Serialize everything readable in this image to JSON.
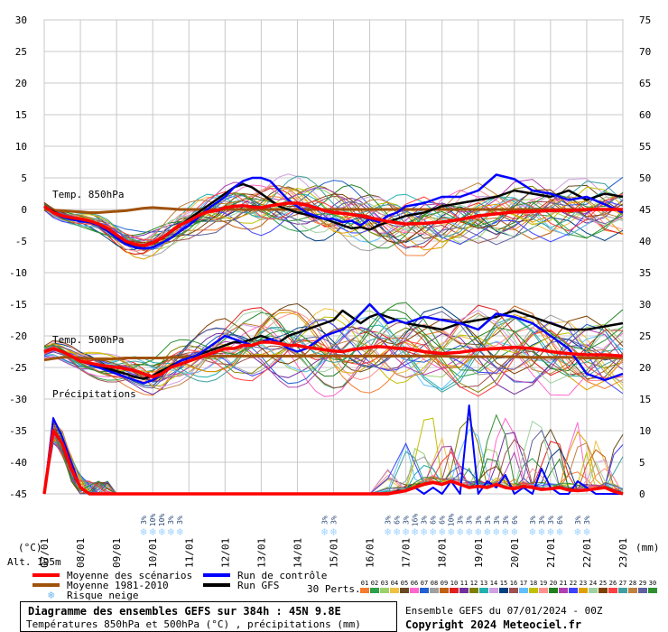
{
  "chart_data": {
    "type": "line",
    "title": "Diagramme des ensembles GEFS sur 384h : 45N 9.8E",
    "subtitle": "Températures 850hPa et 500hPa (°C) , précipitations (mm)",
    "run_info": "Ensemble GEFS du 07/01/2024 - 00Z",
    "copyright": "Copyright 2024 Meteociel.fr",
    "altitude_label": "Alt. 195m",
    "left_axis_unit": "(°C)",
    "right_axis_unit": "(mm)",
    "left_axis": {
      "ylim": [
        -45,
        30
      ],
      "ticks": [
        30,
        25,
        20,
        15,
        10,
        5,
        0,
        -5,
        -10,
        -15,
        -20,
        -25,
        -30,
        -35,
        -40,
        -45
      ]
    },
    "right_axis": {
      "ylim": [
        0,
        75
      ],
      "ticks": [
        75,
        70,
        65,
        60,
        55,
        50,
        45,
        40,
        35,
        30,
        25,
        20,
        15,
        10,
        5,
        0
      ]
    },
    "x_ticks": [
      "07/01",
      "08/01",
      "09/01",
      "10/01",
      "11/01",
      "12/01",
      "13/01",
      "14/01",
      "15/01",
      "16/01",
      "17/01",
      "18/01",
      "19/01",
      "20/01",
      "21/01",
      "22/01",
      "23/01"
    ],
    "grid": true,
    "panel_labels": {
      "t850": "Temp. 850hPa",
      "t500": "Temp. 500hPa",
      "precip": "Précipitations"
    },
    "legend": {
      "moyenne_scenarios": "Moyenne des scénarios",
      "moyenne_clim": "Moyenne 1981-2010",
      "risque_neige": "Risque neige",
      "run_controle": "Run de contrôle",
      "run_gfs": "Run GFS",
      "perts_label": "30 Perts."
    },
    "pert_ids": [
      "01",
      "02",
      "03",
      "04",
      "05",
      "06",
      "07",
      "08",
      "09",
      "10",
      "11",
      "12",
      "13",
      "14",
      "15",
      "16",
      "17",
      "18",
      "19",
      "20",
      "21",
      "22",
      "23",
      "24",
      "25",
      "26",
      "27",
      "28",
      "29",
      "30"
    ],
    "pert_colors": [
      "#f47c30",
      "#2ea04a",
      "#9bd06a",
      "#f0c040",
      "#6a4a20",
      "#ff66cc",
      "#2060d0",
      "#a0a0a0",
      "#c06010",
      "#e02020",
      "#7030a0",
      "#808000",
      "#20b0b0",
      "#d0a0e0",
      "#004080",
      "#a05050",
      "#60c0ff",
      "#c0c000",
      "#ff9090",
      "#208020",
      "#b040b0",
      "#4040ff",
      "#e0a000",
      "#a0d0a0",
      "#804000",
      "#ff4040",
      "#40a0a0",
      "#c08040",
      "#6060a0",
      "#309030"
    ],
    "colors": {
      "moyenne_scenarios": "#ff0000",
      "moyenne_clim": "#a0520a",
      "run_controle": "#0000ff",
      "run_gfs": "#000000",
      "snow": "#9fd3ff"
    },
    "t850": {
      "x_days": [
        0,
        0.25,
        0.5,
        0.75,
        1,
        1.25,
        1.5,
        1.75,
        2,
        2.25,
        2.5,
        2.75,
        3,
        3.25,
        3.5,
        3.75,
        4,
        4.25,
        4.5,
        4.75,
        5,
        5.25,
        5.5,
        5.75,
        6,
        6.25,
        6.5,
        6.75,
        7,
        7.25,
        7.5,
        7.75,
        8,
        8.25,
        8.5,
        8.75,
        9,
        9.25,
        9.5,
        9.75,
        10,
        10.5,
        11,
        11.5,
        12,
        12.5,
        13,
        13.5,
        14,
        14.5,
        15,
        15.5,
        16
      ],
      "mean": [
        0.5,
        -0.5,
        -1,
        -1.3,
        -1.5,
        -1.8,
        -2.3,
        -3,
        -4,
        -5,
        -5.5,
        -5.7,
        -5.3,
        -4.5,
        -3.5,
        -2.5,
        -1.8,
        -1,
        -0.4,
        -0.2,
        0.3,
        0.5,
        0.6,
        0.4,
        0.3,
        0.6,
        0.8,
        1,
        1,
        0.7,
        0.3,
        -0.2,
        -0.5,
        -0.6,
        -0.8,
        -1,
        -1.3,
        -1.6,
        -1.9,
        -2.1,
        -2.3,
        -2.2,
        -2,
        -1.6,
        -1,
        -0.7,
        -0.4,
        -0.3,
        -0.2,
        -0.2,
        0,
        0,
        0
      ],
      "clim": [
        0,
        -0.1,
        -0.2,
        -0.3,
        -0.4,
        -0.5,
        -0.5,
        -0.4,
        -0.3,
        -0.2,
        0,
        0.2,
        0.3,
        0.2,
        0.1,
        0,
        0,
        0,
        0,
        0,
        0,
        0,
        0,
        0,
        0,
        0,
        0,
        0,
        0,
        0,
        0,
        0,
        0,
        0,
        0,
        0,
        0,
        0,
        0,
        0,
        0,
        0,
        0,
        0,
        0,
        0,
        0,
        0,
        0,
        0,
        0,
        0,
        0
      ],
      "control": [
        0.5,
        -0.5,
        -1.2,
        -1.6,
        -1.8,
        -2,
        -2.5,
        -3.4,
        -4.5,
        -5.5,
        -6,
        -6.2,
        -6,
        -5.3,
        -4.5,
        -3.5,
        -2.5,
        -1.3,
        0,
        1,
        2,
        3.5,
        4.5,
        5,
        5,
        4.5,
        3,
        1.5,
        0.5,
        -0.5,
        -1,
        -1.5,
        -1.5,
        -2,
        -1.8,
        -2.5,
        -1.5,
        -2,
        -1,
        -0.5,
        0.5,
        1,
        2,
        2,
        3,
        5.5,
        4.8,
        3,
        2.5,
        1.5,
        2,
        0.8,
        -0.5
      ],
      "gfs": [
        0.5,
        -0.3,
        -1,
        -1.4,
        -1.6,
        -1.9,
        -2.4,
        -3.2,
        -4.2,
        -5.2,
        -5.6,
        -5.8,
        -5.4,
        -4.6,
        -3.6,
        -2.6,
        -1.5,
        -0.5,
        0.5,
        1.5,
        2.5,
        3.5,
        4,
        3.5,
        2.5,
        1.5,
        0.5,
        0,
        -0.5,
        -0.8,
        -1.2,
        -1.5,
        -2,
        -2.5,
        -3,
        -2.8,
        -3.2,
        -2.5,
        -2,
        -1.5,
        -1,
        -0.5,
        0.5,
        1,
        1.5,
        2,
        3,
        2.5,
        2,
        3,
        1.5,
        2.5,
        2
      ]
    },
    "t500": {
      "x_days": [
        0,
        0.25,
        0.5,
        0.75,
        1,
        1.25,
        1.5,
        1.75,
        2,
        2.25,
        2.5,
        2.75,
        3,
        3.25,
        3.5,
        3.75,
        4,
        4.25,
        4.5,
        4.75,
        5,
        5.25,
        5.5,
        5.75,
        6,
        6.25,
        6.5,
        6.75,
        7,
        7.25,
        7.5,
        7.75,
        8,
        8.25,
        8.5,
        8.75,
        9,
        9.25,
        9.5,
        9.75,
        10,
        10.5,
        11,
        11.5,
        12,
        12.5,
        13,
        13.5,
        14,
        14.5,
        15,
        15.5,
        16
      ],
      "mean": [
        -22.5,
        -22,
        -22.5,
        -23.2,
        -24,
        -24.3,
        -24.6,
        -24.8,
        -25,
        -25.2,
        -25.5,
        -26,
        -26.5,
        -26,
        -25,
        -24.5,
        -24,
        -23.5,
        -23,
        -22.5,
        -22,
        -22,
        -21.5,
        -21.5,
        -21,
        -21,
        -21.2,
        -21.5,
        -21.5,
        -21.8,
        -22,
        -22.2,
        -22.4,
        -22.5,
        -22.2,
        -22,
        -21.8,
        -21.7,
        -21.8,
        -22,
        -22,
        -22.5,
        -22.8,
        -22.6,
        -22.2,
        -22,
        -21.8,
        -22,
        -22.5,
        -22.8,
        -23,
        -23,
        -23.2
      ],
      "clim": [
        -23.8,
        -23.6,
        -23.4,
        -23.4,
        -23.5,
        -23.6,
        -23.7,
        -23.7,
        -23.6,
        -23.5,
        -23.5,
        -23.5,
        -23.5,
        -23.5,
        -23.4,
        -23.4,
        -23.3,
        -23.3,
        -23.3,
        -23.2,
        -23.2,
        -23.2,
        -23.2,
        -23.2,
        -23.2,
        -23.2,
        -23.2,
        -23.2,
        -23.2,
        -23.2,
        -23.2,
        -23.2,
        -23.2,
        -23.2,
        -23.2,
        -23.2,
        -23.2,
        -23.2,
        -23.2,
        -23.2,
        -23.2,
        -23.2,
        -23.2,
        -23.3,
        -23.3,
        -23.3,
        -23.3,
        -23.4,
        -23.4,
        -23.4,
        -23.5,
        -23.5,
        -23.5
      ],
      "control": [
        -22.5,
        -22,
        -22.5,
        -23.2,
        -24,
        -24.5,
        -25,
        -25.5,
        -26,
        -26.5,
        -27,
        -27.5,
        -27,
        -26,
        -25,
        -24,
        -23.5,
        -23,
        -22,
        -21,
        -20,
        -20.5,
        -21,
        -21.5,
        -21,
        -20.5,
        -21,
        -22,
        -22.5,
        -22,
        -21,
        -20,
        -19.5,
        -19,
        -18,
        -16.5,
        -15,
        -16.5,
        -18,
        -17.5,
        -18,
        -17,
        -17.5,
        -18,
        -19,
        -16.5,
        -17,
        -18,
        -20,
        -22,
        -26,
        -27,
        -26
      ],
      "gfs": [
        -22.5,
        -22,
        -22.5,
        -23.2,
        -24,
        -24.4,
        -24.8,
        -25.2,
        -25.6,
        -26,
        -26.5,
        -26.8,
        -26.3,
        -25.5,
        -24.8,
        -24,
        -23.5,
        -23,
        -22.5,
        -22,
        -21.5,
        -21,
        -21,
        -20.5,
        -20,
        -20.5,
        -21,
        -20,
        -19.5,
        -19,
        -18.5,
        -18,
        -17.5,
        -16,
        -17,
        -18,
        -17,
        -16.5,
        -17,
        -17.5,
        -18,
        -18.5,
        -19,
        -18,
        -17.5,
        -17,
        -16,
        -17,
        -18,
        -19,
        -19,
        -18.5,
        -18
      ]
    },
    "precip": {
      "x_days": [
        0,
        0.25,
        0.5,
        0.75,
        1,
        1.25,
        1.5,
        1.75,
        2,
        3,
        4,
        5,
        6,
        7,
        8,
        9,
        9.5,
        10,
        10.25,
        10.5,
        10.75,
        11,
        11.25,
        11.5,
        11.75,
        12,
        12.25,
        12.5,
        12.75,
        13,
        13.25,
        13.5,
        13.75,
        14,
        14.25,
        14.5,
        14.75,
        15,
        15.25,
        15.5,
        15.75,
        16
      ],
      "mean": [
        0,
        10,
        8,
        4,
        1,
        0,
        0,
        0,
        0,
        0,
        0,
        0,
        0,
        0,
        0,
        0,
        0,
        0.5,
        1,
        1.5,
        1.8,
        1.5,
        2,
        1.5,
        1,
        1.2,
        1,
        1.5,
        1,
        0.8,
        1.2,
        1,
        0.7,
        0.8,
        1,
        0.6,
        0.5,
        0.6,
        0.8,
        1,
        0.4,
        0
      ],
      "control": [
        0,
        12,
        9,
        5,
        1,
        0,
        0,
        0,
        0,
        0,
        0,
        0,
        0,
        0,
        0,
        0,
        0,
        0.5,
        1,
        0,
        1,
        0,
        2,
        0,
        14,
        0,
        2,
        1,
        3,
        0,
        1,
        0,
        4,
        1,
        0,
        0,
        2,
        1,
        0,
        0,
        0,
        0
      ]
    },
    "snow_risk_days": [
      {
        "day": 2.75,
        "pct": "3%"
      },
      {
        "day": 3,
        "pct": "10%"
      },
      {
        "day": 3.25,
        "pct": "10%"
      },
      {
        "day": 3.5,
        "pct": "3%"
      },
      {
        "day": 3.75,
        "pct": "3%"
      },
      {
        "day": 7.75,
        "pct": "3%"
      },
      {
        "day": 8,
        "pct": "3%"
      },
      {
        "day": 9.5,
        "pct": "3%"
      },
      {
        "day": 9.75,
        "pct": "6%"
      },
      {
        "day": 10,
        "pct": "3%"
      },
      {
        "day": 10.25,
        "pct": "16%"
      },
      {
        "day": 10.5,
        "pct": "3%"
      },
      {
        "day": 10.75,
        "pct": "6%"
      },
      {
        "day": 11,
        "pct": "6%"
      },
      {
        "day": 11.25,
        "pct": "10%"
      },
      {
        "day": 11.5,
        "pct": "3%"
      },
      {
        "day": 11.75,
        "pct": "3%"
      },
      {
        "day": 12,
        "pct": "3%"
      },
      {
        "day": 12.25,
        "pct": "3%"
      },
      {
        "day": 12.5,
        "pct": "3%"
      },
      {
        "day": 12.75,
        "pct": "3%"
      },
      {
        "day": 13,
        "pct": "6%"
      },
      {
        "day": 13.5,
        "pct": "3%"
      },
      {
        "day": 13.75,
        "pct": "3%"
      },
      {
        "day": 14,
        "pct": "3%"
      },
      {
        "day": 14.25,
        "pct": "6%"
      },
      {
        "day": 14.75,
        "pct": "3%"
      },
      {
        "day": 15,
        "pct": "3%"
      }
    ]
  }
}
